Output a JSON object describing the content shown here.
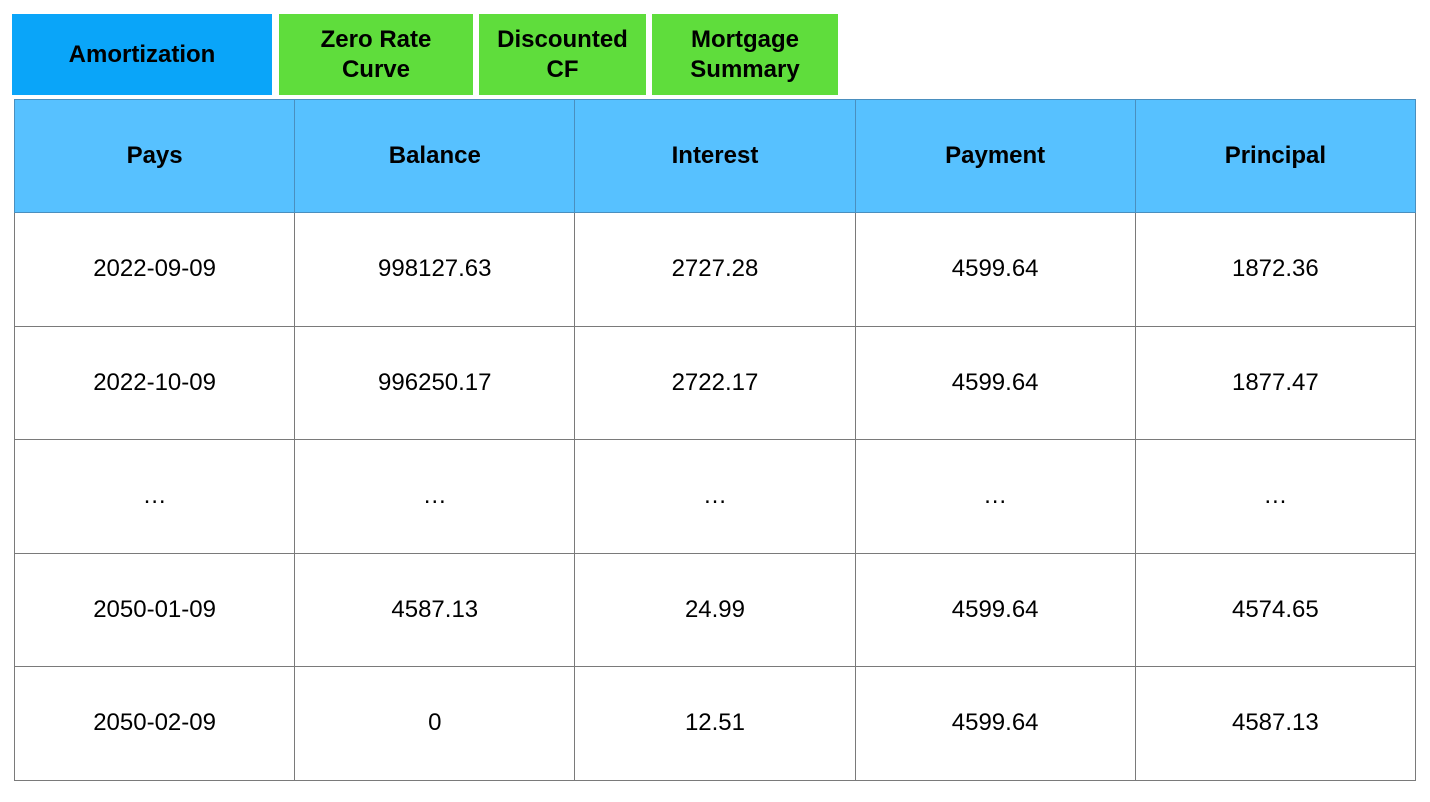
{
  "tabs": [
    {
      "label": "Amortization",
      "active": true
    },
    {
      "label": "Zero Rate\nCurve",
      "active": false
    },
    {
      "label": "Discounted\nCF",
      "active": false
    },
    {
      "label": "Mortgage\nSummary",
      "active": false
    }
  ],
  "colors": {
    "active_tab": "#0aa5f9",
    "inactive_tab": "#5fdd3c",
    "header_bg": "#57c1ff",
    "border": "#7a7a7a"
  },
  "table": {
    "headers": [
      "Pays",
      "Balance",
      "Interest",
      "Payment",
      "Principal"
    ],
    "rows": [
      [
        "2022-09-09",
        "998127.63",
        "2727.28",
        "4599.64",
        "1872.36"
      ],
      [
        "2022-10-09",
        "996250.17",
        "2722.17",
        "4599.64",
        "1877.47"
      ],
      [
        "…",
        "…",
        "…",
        "…",
        "…"
      ],
      [
        "2050-01-09",
        "4587.13",
        "24.99",
        "4599.64",
        "4574.65"
      ],
      [
        "2050-02-09",
        "0",
        "12.51",
        "4599.64",
        "4587.13"
      ]
    ]
  }
}
